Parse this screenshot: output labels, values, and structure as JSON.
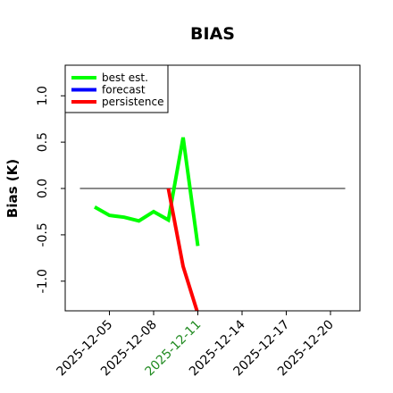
{
  "chart_data": {
    "type": "line",
    "title": "BIAS",
    "y_label": "Bias (K)",
    "x": [
      "2025-12-04",
      "2025-12-05",
      "2025-12-06",
      "2025-12-07",
      "2025-12-08",
      "2025-12-09",
      "2025-12-10",
      "2025-12-11"
    ],
    "series": [
      {
        "name": "best est.",
        "color": "#00ff00",
        "values": [
          -0.2,
          -0.29,
          -0.31,
          -0.35,
          -0.25,
          -0.34,
          0.55,
          -0.62
        ]
      },
      {
        "name": "forecast",
        "color": "#0000ff",
        "values": [
          null,
          null,
          null,
          null,
          null,
          null,
          null,
          null
        ]
      },
      {
        "name": "persistence",
        "color": "#ff0000",
        "values": [
          null,
          null,
          null,
          null,
          null,
          0.0,
          -0.84,
          -1.35
        ]
      }
    ],
    "reference_line": {
      "value": 0,
      "from": "2025-12-03",
      "to": "2025-12-21",
      "color": "#444444"
    },
    "xlim": [
      "2025-12-02",
      "2025-12-22"
    ],
    "xticks": [
      "2025-12-05",
      "2025-12-08",
      "2025-12-11",
      "2025-12-14",
      "2025-12-17",
      "2025-12-20"
    ],
    "highlight_xtick": "2025-12-11",
    "highlight_color": "#228b22",
    "ylim": [
      -1.32,
      1.33
    ],
    "yticks": [
      -1.0,
      -0.5,
      0.0,
      0.5,
      1.0
    ],
    "legend": "upper left"
  }
}
